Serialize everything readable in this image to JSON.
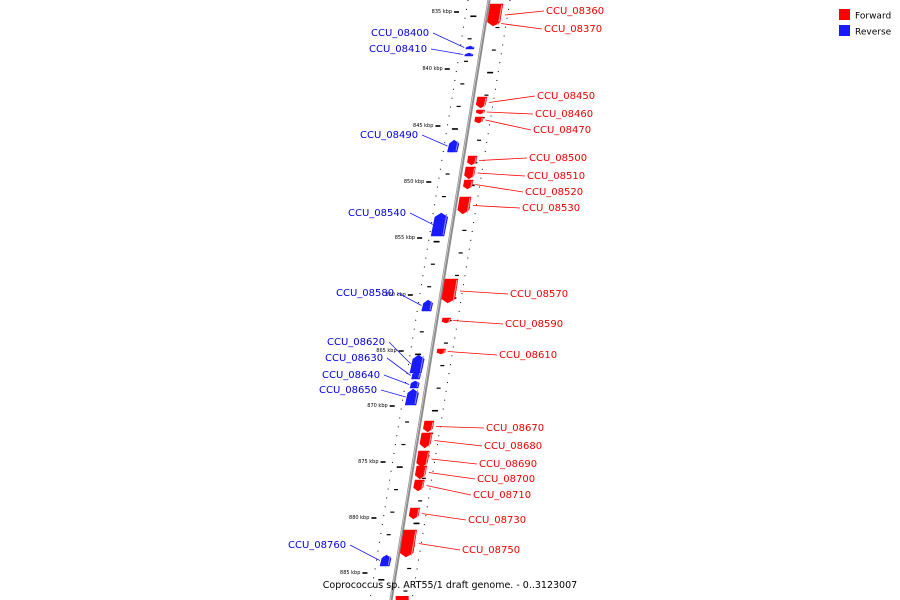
{
  "legend": {
    "forward_label": "Forward",
    "reverse_label": "Reverse",
    "forward_color": "#ff0000",
    "reverse_color": "#1a1aff"
  },
  "caption": "Coprococcus sp. ART55/1 draft genome. - 0..3123007",
  "kbp_marks": [
    "835 kbp",
    "840 kbp",
    "845 kbp",
    "850 kbp",
    "855 kbp",
    "860 kbp",
    "865 kbp",
    "870 kbp",
    "875 kbp",
    "880 kbp",
    "885 kbp"
  ],
  "genes": [
    {
      "id": "CCU_08360",
      "strand": "forward"
    },
    {
      "id": "CCU_08370",
      "strand": "forward"
    },
    {
      "id": "CCU_08400",
      "strand": "reverse"
    },
    {
      "id": "CCU_08410",
      "strand": "reverse"
    },
    {
      "id": "CCU_08450",
      "strand": "forward"
    },
    {
      "id": "CCU_08460",
      "strand": "forward"
    },
    {
      "id": "CCU_08470",
      "strand": "forward"
    },
    {
      "id": "CCU_08490",
      "strand": "reverse"
    },
    {
      "id": "CCU_08500",
      "strand": "forward"
    },
    {
      "id": "CCU_08510",
      "strand": "forward"
    },
    {
      "id": "CCU_08520",
      "strand": "forward"
    },
    {
      "id": "CCU_08530",
      "strand": "forward"
    },
    {
      "id": "CCU_08540",
      "strand": "reverse"
    },
    {
      "id": "CCU_08570",
      "strand": "forward"
    },
    {
      "id": "CCU_08580",
      "strand": "reverse"
    },
    {
      "id": "CCU_08590",
      "strand": "forward"
    },
    {
      "id": "CCU_08610",
      "strand": "forward"
    },
    {
      "id": "CCU_08620",
      "strand": "reverse"
    },
    {
      "id": "CCU_08630",
      "strand": "reverse"
    },
    {
      "id": "CCU_08640",
      "strand": "reverse"
    },
    {
      "id": "CCU_08650",
      "strand": "reverse"
    },
    {
      "id": "CCU_08670",
      "strand": "forward"
    },
    {
      "id": "CCU_08680",
      "strand": "forward"
    },
    {
      "id": "CCU_08690",
      "strand": "forward"
    },
    {
      "id": "CCU_08700",
      "strand": "forward"
    },
    {
      "id": "CCU_08710",
      "strand": "forward"
    },
    {
      "id": "CCU_08730",
      "strand": "forward"
    },
    {
      "id": "CCU_08750",
      "strand": "forward"
    },
    {
      "id": "CCU_08760",
      "strand": "reverse"
    }
  ]
}
